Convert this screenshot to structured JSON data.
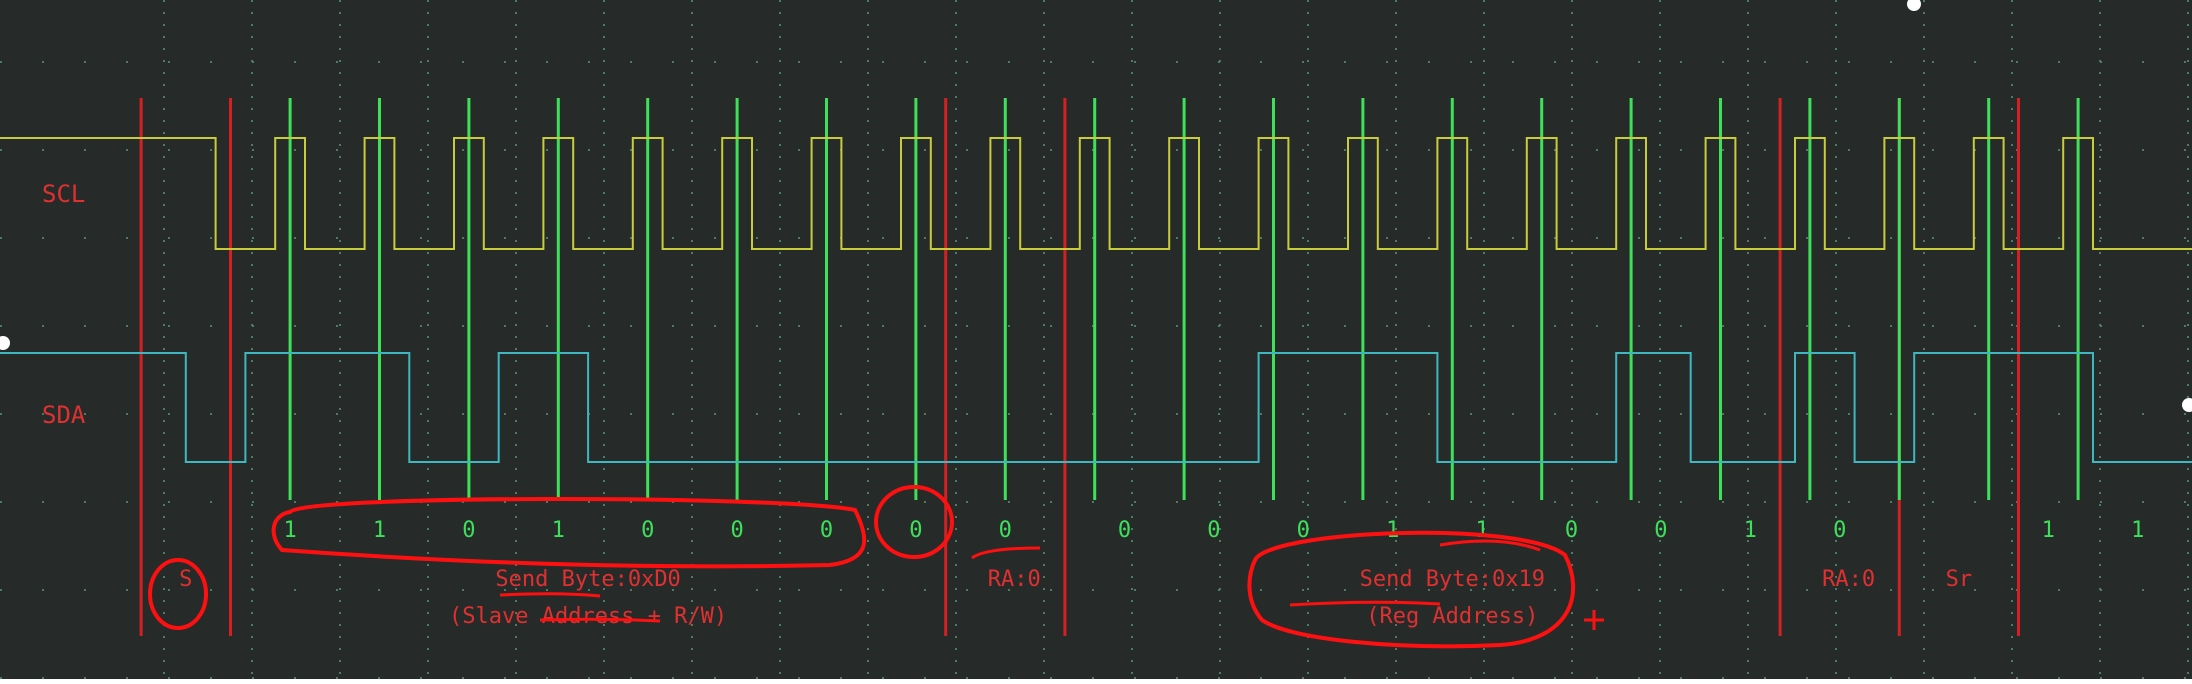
{
  "colors": {
    "background": "#262b2a",
    "grid": "#4f7a66",
    "scl": "#c8cc3a",
    "sda": "#3fb7c0",
    "bit_marker": "#3ee05a",
    "frame_marker": "#d42020",
    "label": "#e03030",
    "bit_text": "#3ee05a",
    "annotation": "#ff1010"
  },
  "channels": {
    "scl_label": "SCL",
    "sda_label": "SDA"
  },
  "chart_data": {
    "type": "line",
    "title": "",
    "xlabel": "",
    "ylabel": "",
    "time_range": [
      0,
      70
    ],
    "grid": true,
    "series": [
      {
        "name": "SCL",
        "level_high": 1,
        "level_low": 0,
        "steps": [
          [
            0,
            1
          ],
          [
            7,
            0
          ],
          [
            9,
            1
          ],
          [
            10,
            0
          ],
          [
            12,
            1
          ],
          [
            13,
            0
          ],
          [
            15,
            1
          ],
          [
            16,
            0
          ],
          [
            18,
            1
          ],
          [
            19,
            0
          ],
          [
            21,
            1
          ],
          [
            22,
            0
          ],
          [
            24,
            1
          ],
          [
            25,
            0
          ],
          [
            27,
            1
          ],
          [
            28,
            0
          ],
          [
            30,
            1
          ],
          [
            31,
            0
          ],
          [
            33,
            1
          ],
          [
            34,
            0
          ],
          [
            36,
            1
          ],
          [
            37,
            0
          ],
          [
            39,
            1
          ],
          [
            40,
            0
          ],
          [
            42,
            1
          ],
          [
            43,
            0
          ],
          [
            45,
            1
          ],
          [
            46,
            0
          ],
          [
            48,
            1
          ],
          [
            49,
            0
          ],
          [
            51,
            1
          ],
          [
            52,
            0
          ],
          [
            54,
            1
          ],
          [
            55,
            0
          ],
          [
            57,
            1
          ],
          [
            58,
            0
          ],
          [
            60,
            1
          ],
          [
            61,
            0
          ],
          [
            63,
            1
          ],
          [
            64,
            0
          ],
          [
            66,
            1
          ],
          [
            67,
            0
          ],
          [
            69,
            1
          ],
          [
            70,
            0
          ]
        ]
      },
      {
        "name": "SDA",
        "level_high": 1,
        "level_low": 0,
        "steps": [
          [
            0,
            1
          ],
          [
            6,
            0
          ],
          [
            8,
            1
          ],
          [
            13.5,
            0
          ],
          [
            16.5,
            1
          ],
          [
            19.5,
            0
          ],
          [
            42,
            1
          ],
          [
            48,
            0
          ],
          [
            54,
            1
          ],
          [
            56.5,
            0
          ],
          [
            60,
            1
          ],
          [
            62,
            0
          ],
          [
            64,
            1
          ],
          [
            70,
            0
          ]
        ]
      }
    ],
    "bit_markers": [
      9.5,
      12.5,
      15.5,
      18.5,
      21.5,
      24.5,
      27.5,
      30.5,
      33.5,
      36.5,
      39.5,
      42.5,
      45.5,
      48.5,
      51.5,
      54.5,
      57.5,
      60.5,
      63.5,
      66.5,
      69.5
    ],
    "frame_markers": [
      4.5,
      7.5,
      31.5,
      35.5,
      59.5,
      63.5,
      67.5
    ],
    "bit_labels": [
      {
        "t": 9.5,
        "text": "1"
      },
      {
        "t": 12.5,
        "text": "1"
      },
      {
        "t": 15.5,
        "text": "0"
      },
      {
        "t": 18.5,
        "text": "1"
      },
      {
        "t": 21.5,
        "text": "0"
      },
      {
        "t": 24.5,
        "text": "0"
      },
      {
        "t": 27.5,
        "text": "0"
      },
      {
        "t": 30.5,
        "text": "0"
      },
      {
        "t": 33.5,
        "text": "0"
      },
      {
        "t": 37.5,
        "text": "0"
      },
      {
        "t": 40.5,
        "text": "0"
      },
      {
        "t": 43.5,
        "text": "0"
      },
      {
        "t": 46.5,
        "text": "1"
      },
      {
        "t": 49.5,
        "text": "1"
      },
      {
        "t": 52.5,
        "text": "0"
      },
      {
        "t": 55.5,
        "text": "0"
      },
      {
        "t": 58.5,
        "text": "1"
      },
      {
        "t": 61.5,
        "text": "0"
      },
      {
        "t": 68.5,
        "text": "1"
      },
      {
        "t": 71.5,
        "text": "1"
      }
    ],
    "annotations": [
      {
        "t": 6,
        "line1": "S",
        "line2": ""
      },
      {
        "t": 19.5,
        "line1": "Send Byte:0xD0",
        "line2": "(Slave Address + R/W)"
      },
      {
        "t": 33.8,
        "line1": "RA:0",
        "line2": ""
      },
      {
        "t": 48.5,
        "line1": "Send Byte:0x19",
        "line2": "(Reg Address)"
      },
      {
        "t": 61.8,
        "line1": "RA:0",
        "line2": ""
      },
      {
        "t": 65.5,
        "line1": "Sr",
        "line2": ""
      }
    ]
  }
}
